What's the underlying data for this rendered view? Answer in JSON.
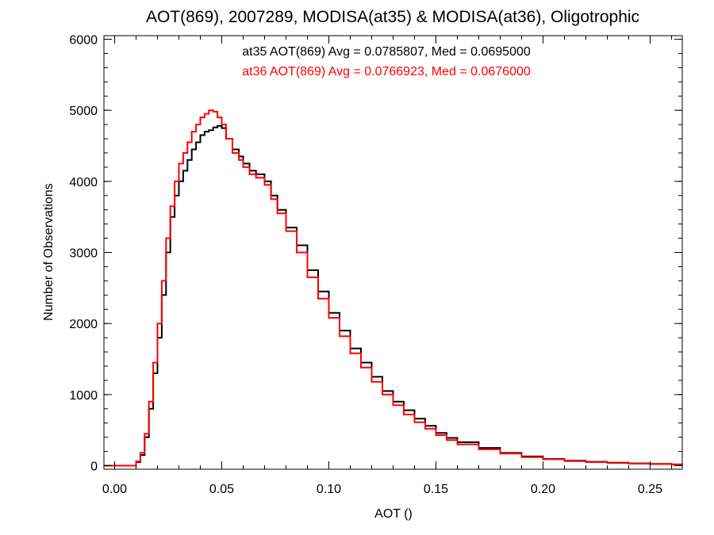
{
  "chart_data": {
    "type": "line",
    "title": "AOT(869), 2007289, MODISA(at35) & MODISA(at36), Oligotrophic",
    "xlabel": "AOT ()",
    "ylabel": "Number of Observations",
    "xlim": [
      -0.005,
      0.265
    ],
    "ylim": [
      -50,
      6050
    ],
    "x_ticks": [
      0.0,
      0.05,
      0.1,
      0.15,
      0.2,
      0.25
    ],
    "x_tick_labels": [
      "0.00",
      "0.05",
      "0.10",
      "0.15",
      "0.20",
      "0.25"
    ],
    "y_ticks": [
      0,
      1000,
      2000,
      3000,
      4000,
      5000,
      6000
    ],
    "y_tick_labels": [
      "0",
      "1000",
      "2000",
      "3000",
      "4000",
      "5000",
      "6000"
    ],
    "grid": false,
    "annotations": [
      {
        "text": "at35 AOT(869) Avg = 0.0785807, Med = 0.0695000",
        "color": "#000000"
      },
      {
        "text": "at36 AOT(869) Avg = 0.0766923, Med = 0.0676000",
        "color": "#ff0000"
      }
    ],
    "series": [
      {
        "color": "#000000",
        "x": [
          -0.005,
          0.008,
          0.01,
          0.012,
          0.014,
          0.016,
          0.018,
          0.02,
          0.022,
          0.024,
          0.026,
          0.028,
          0.03,
          0.032,
          0.034,
          0.036,
          0.038,
          0.04,
          0.042,
          0.044,
          0.046,
          0.048,
          0.05,
          0.052,
          0.055,
          0.058,
          0.06,
          0.063,
          0.066,
          0.07,
          0.073,
          0.076,
          0.08,
          0.085,
          0.09,
          0.095,
          0.1,
          0.105,
          0.11,
          0.115,
          0.12,
          0.125,
          0.13,
          0.135,
          0.14,
          0.145,
          0.15,
          0.155,
          0.16,
          0.17,
          0.18,
          0.19,
          0.2,
          0.21,
          0.22,
          0.23,
          0.24,
          0.25,
          0.26,
          0.265
        ],
        "values": [
          0,
          0,
          50,
          150,
          400,
          800,
          1300,
          1800,
          2400,
          3000,
          3500,
          3800,
          4000,
          4150,
          4300,
          4450,
          4550,
          4650,
          4700,
          4720,
          4760,
          4780,
          4750,
          4600,
          4450,
          4350,
          4250,
          4150,
          4100,
          4000,
          3800,
          3600,
          3350,
          3100,
          2750,
          2450,
          2150,
          1900,
          1650,
          1450,
          1250,
          1050,
          900,
          780,
          660,
          560,
          460,
          390,
          330,
          250,
          180,
          130,
          95,
          70,
          55,
          42,
          32,
          25,
          18,
          15
        ]
      },
      {
        "color": "#ff0000",
        "x": [
          -0.005,
          0.008,
          0.01,
          0.012,
          0.014,
          0.016,
          0.018,
          0.02,
          0.022,
          0.024,
          0.026,
          0.028,
          0.03,
          0.032,
          0.034,
          0.036,
          0.038,
          0.04,
          0.042,
          0.044,
          0.046,
          0.048,
          0.05,
          0.052,
          0.055,
          0.058,
          0.06,
          0.063,
          0.066,
          0.07,
          0.073,
          0.076,
          0.08,
          0.085,
          0.09,
          0.095,
          0.1,
          0.105,
          0.11,
          0.115,
          0.12,
          0.125,
          0.13,
          0.135,
          0.14,
          0.145,
          0.15,
          0.155,
          0.16,
          0.17,
          0.18,
          0.19,
          0.2,
          0.21,
          0.22,
          0.23,
          0.24,
          0.25,
          0.26,
          0.265
        ],
        "values": [
          0,
          0,
          60,
          180,
          450,
          900,
          1450,
          2000,
          2600,
          3200,
          3650,
          4000,
          4250,
          4400,
          4550,
          4700,
          4800,
          4900,
          4950,
          5000,
          4980,
          4900,
          4800,
          4600,
          4400,
          4300,
          4200,
          4100,
          4050,
          3950,
          3750,
          3550,
          3300,
          3000,
          2650,
          2350,
          2080,
          1820,
          1580,
          1380,
          1180,
          1000,
          850,
          720,
          610,
          520,
          430,
          360,
          300,
          230,
          170,
          120,
          90,
          65,
          50,
          38,
          28,
          22,
          16,
          12
        ]
      }
    ]
  }
}
